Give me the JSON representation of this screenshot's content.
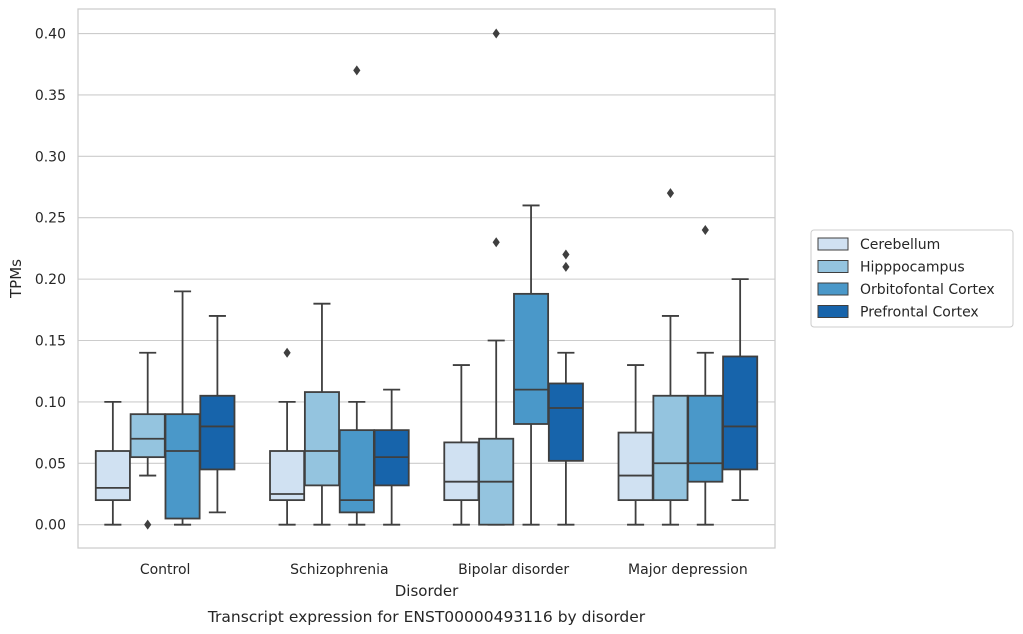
{
  "chart_data": {
    "type": "box",
    "title": "",
    "caption": "Transcript expression for ENST00000493116 by disorder",
    "xlabel": "Disorder",
    "ylabel": "TPMs",
    "ylim": [
      -0.019,
      0.42
    ],
    "yticks": [
      "0.00",
      "0.05",
      "0.10",
      "0.15",
      "0.20",
      "0.25",
      "0.30",
      "0.35",
      "0.40"
    ],
    "grid": "horizontal",
    "legend_position": "right",
    "categories": [
      "Control",
      "Schizophrenia",
      "Bipolar disorder",
      "Major depression"
    ],
    "series": [
      {
        "name": "Cerebellum",
        "color": "#d0e1f2",
        "boxes": [
          {
            "whislo": 0.0,
            "q1": 0.02,
            "med": 0.03,
            "q3": 0.06,
            "whishi": 0.1,
            "fliers": []
          },
          {
            "whislo": 0.0,
            "q1": 0.02,
            "med": 0.025,
            "q3": 0.06,
            "whishi": 0.1,
            "fliers": [
              0.14
            ]
          },
          {
            "whislo": 0.0,
            "q1": 0.02,
            "med": 0.035,
            "q3": 0.067,
            "whishi": 0.13,
            "fliers": []
          },
          {
            "whislo": 0.0,
            "q1": 0.02,
            "med": 0.04,
            "q3": 0.075,
            "whishi": 0.13,
            "fliers": []
          }
        ]
      },
      {
        "name": "Hipppocampus",
        "color": "#94c4df",
        "boxes": [
          {
            "whislo": 0.04,
            "q1": 0.055,
            "med": 0.07,
            "q3": 0.09,
            "whishi": 0.14,
            "fliers": [
              0.0
            ]
          },
          {
            "whislo": 0.0,
            "q1": 0.032,
            "med": 0.06,
            "q3": 0.108,
            "whishi": 0.18,
            "fliers": []
          },
          {
            "whislo": 0.0,
            "q1": 0.0,
            "med": 0.035,
            "q3": 0.07,
            "whishi": 0.15,
            "fliers": [
              0.23,
              0.4
            ]
          },
          {
            "whislo": 0.0,
            "q1": 0.02,
            "med": 0.05,
            "q3": 0.105,
            "whishi": 0.17,
            "fliers": [
              0.27
            ]
          }
        ]
      },
      {
        "name": "Orbitofontal Cortex",
        "color": "#4a98c9",
        "boxes": [
          {
            "whislo": 0.0,
            "q1": 0.005,
            "med": 0.06,
            "q3": 0.09,
            "whishi": 0.19,
            "fliers": []
          },
          {
            "whislo": 0.0,
            "q1": 0.01,
            "med": 0.02,
            "q3": 0.077,
            "whishi": 0.1,
            "fliers": [
              0.37
            ]
          },
          {
            "whislo": 0.0,
            "q1": 0.082,
            "med": 0.11,
            "q3": 0.188,
            "whishi": 0.26,
            "fliers": []
          },
          {
            "whislo": 0.0,
            "q1": 0.035,
            "med": 0.05,
            "q3": 0.105,
            "whishi": 0.14,
            "fliers": [
              0.24
            ]
          }
        ]
      },
      {
        "name": "Prefrontal Cortex",
        "color": "#1764ab",
        "boxes": [
          {
            "whislo": 0.01,
            "q1": 0.045,
            "med": 0.08,
            "q3": 0.105,
            "whishi": 0.17,
            "fliers": []
          },
          {
            "whislo": 0.0,
            "q1": 0.032,
            "med": 0.055,
            "q3": 0.077,
            "whishi": 0.11,
            "fliers": []
          },
          {
            "whislo": 0.0,
            "q1": 0.052,
            "med": 0.095,
            "q3": 0.115,
            "whishi": 0.14,
            "fliers": [
              0.21,
              0.22
            ]
          },
          {
            "whislo": 0.02,
            "q1": 0.045,
            "med": 0.08,
            "q3": 0.137,
            "whishi": 0.2,
            "fliers": []
          }
        ]
      }
    ]
  }
}
